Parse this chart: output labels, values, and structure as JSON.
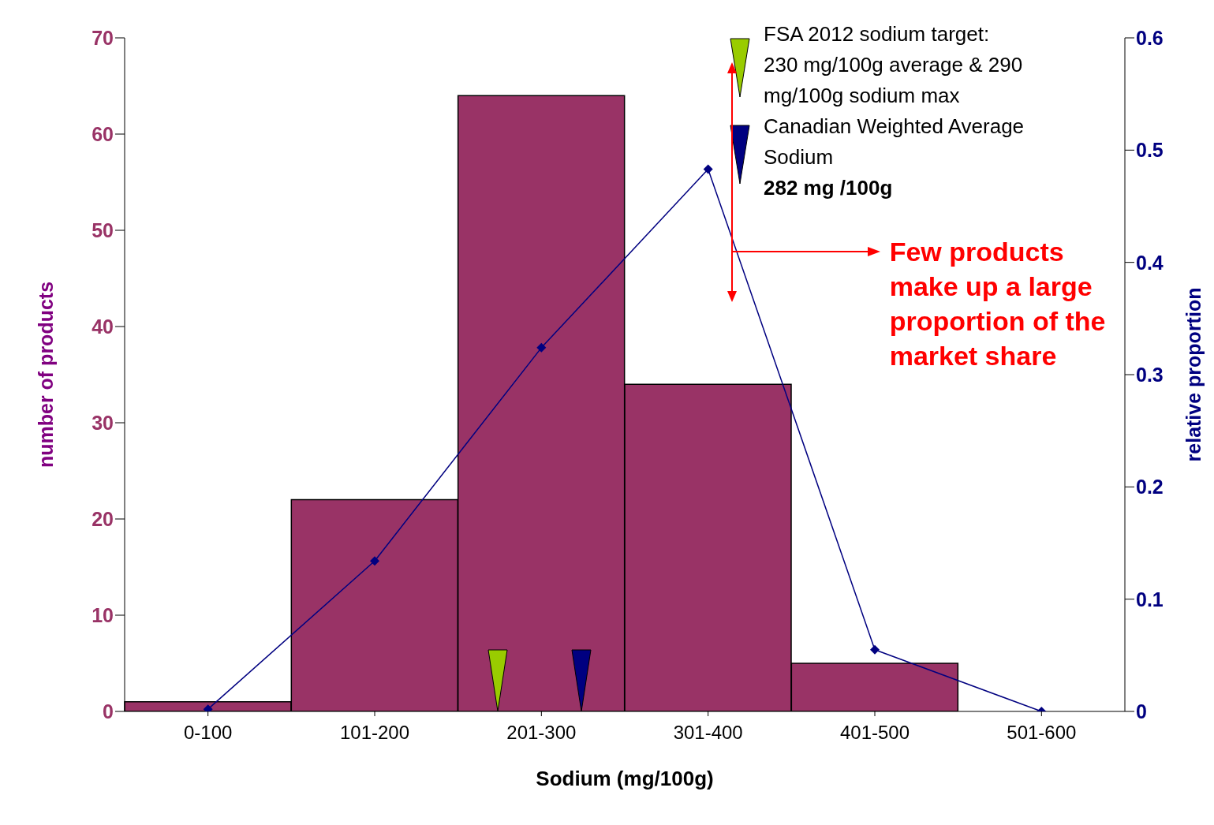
{
  "chart_data": {
    "type": "bar",
    "xlabel": "Sodium (mg/100g)",
    "ylabel": "number of products",
    "y2label": "relative proportion",
    "categories": [
      "0-100",
      "101-200",
      "201-300",
      "301-400",
      "401-500",
      "501-600"
    ],
    "series": [
      {
        "color": "#993366",
        "values": [
          1,
          22,
          64,
          34,
          5,
          0
        ]
      },
      {
        "type": "line",
        "axis": "y2",
        "color": "#000080",
        "values": [
          0.002,
          0.134,
          0.324,
          0.483,
          0.055,
          0
        ]
      }
    ],
    "ylim": [
      0,
      70
    ],
    "yticks": [
      0,
      10,
      20,
      30,
      40,
      50,
      60,
      70
    ],
    "y2lim": [
      0,
      0.6
    ],
    "y2ticks": [
      0,
      0.1,
      0.2,
      0.3,
      0.4,
      0.5,
      0.6
    ],
    "marker": "diamond",
    "grid": false,
    "legend": false,
    "annotations": [
      "FSA 2012 sodium target:",
      "230 mg/100g average & 290 mg/100g sodium max",
      "Canadian Weighted Average Sodium",
      "282 mg /100g",
      "Few products make up a large proportion of the market share"
    ]
  }
}
